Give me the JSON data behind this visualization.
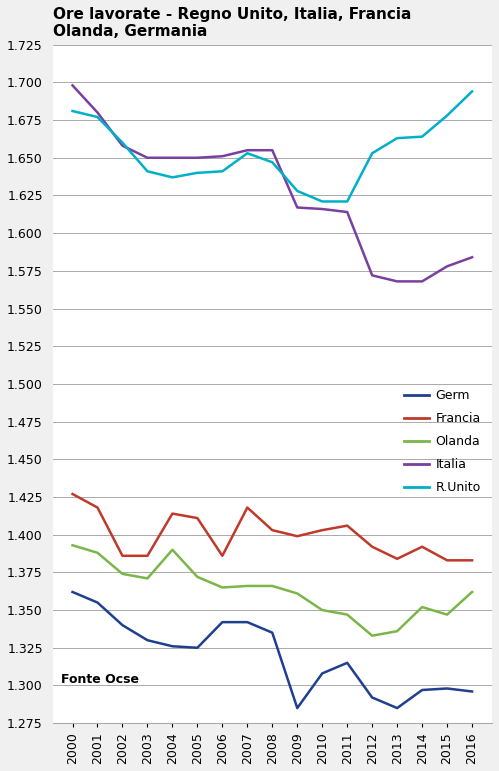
{
  "title": "Ore lavorate - Regno Unito, Italia, Francia\nOlanda, Germania",
  "years": [
    2000,
    2001,
    2002,
    2003,
    2004,
    2005,
    2006,
    2007,
    2008,
    2009,
    2010,
    2011,
    2012,
    2013,
    2014,
    2015,
    2016
  ],
  "Germania": [
    1.362,
    1.355,
    1.34,
    1.33,
    1.326,
    1.325,
    1.342,
    1.342,
    1.335,
    1.285,
    1.308,
    1.315,
    1.292,
    1.285,
    1.297,
    1.298,
    1.296
  ],
  "Francia": [
    1.427,
    1.418,
    1.386,
    1.386,
    1.414,
    1.411,
    1.386,
    1.418,
    1.403,
    1.399,
    1.403,
    1.406,
    1.392,
    1.384,
    1.392,
    1.383,
    1.383
  ],
  "Olanda": [
    1.393,
    1.388,
    1.374,
    1.371,
    1.39,
    1.372,
    1.365,
    1.366,
    1.366,
    1.361,
    1.35,
    1.347,
    1.333,
    1.336,
    1.352,
    1.347,
    1.362
  ],
  "Italia": [
    1.698,
    1.68,
    1.658,
    1.65,
    1.65,
    1.65,
    1.651,
    1.655,
    1.655,
    1.617,
    1.616,
    1.614,
    1.572,
    1.568,
    1.568,
    1.578,
    1.584
  ],
  "R.Unito": [
    1.681,
    1.677,
    1.66,
    1.641,
    1.637,
    1.64,
    1.641,
    1.653,
    1.647,
    1.628,
    1.621,
    1.621,
    1.653,
    1.663,
    1.664,
    1.678,
    1.694
  ],
  "colors": {
    "Germania": "#1f3f8f",
    "Francia": "#c0392b",
    "Olanda": "#7ab648",
    "Italia": "#7b3fa0",
    "R.Unito": "#00b0c8"
  },
  "legend_labels": [
    "Germ",
    "Francia",
    "Olanda",
    "Italia",
    "R.Unito"
  ],
  "series_order": [
    "Germania",
    "Francia",
    "Olanda",
    "Italia",
    "R.Unito"
  ],
  "ylim": [
    1.275,
    1.725
  ],
  "ytick_step": 0.025,
  "footnote": "Fonte Ocse",
  "background_color": "#f0f0f0",
  "plot_bg_color": "#ffffff",
  "grid_color": "#aaaaaa"
}
